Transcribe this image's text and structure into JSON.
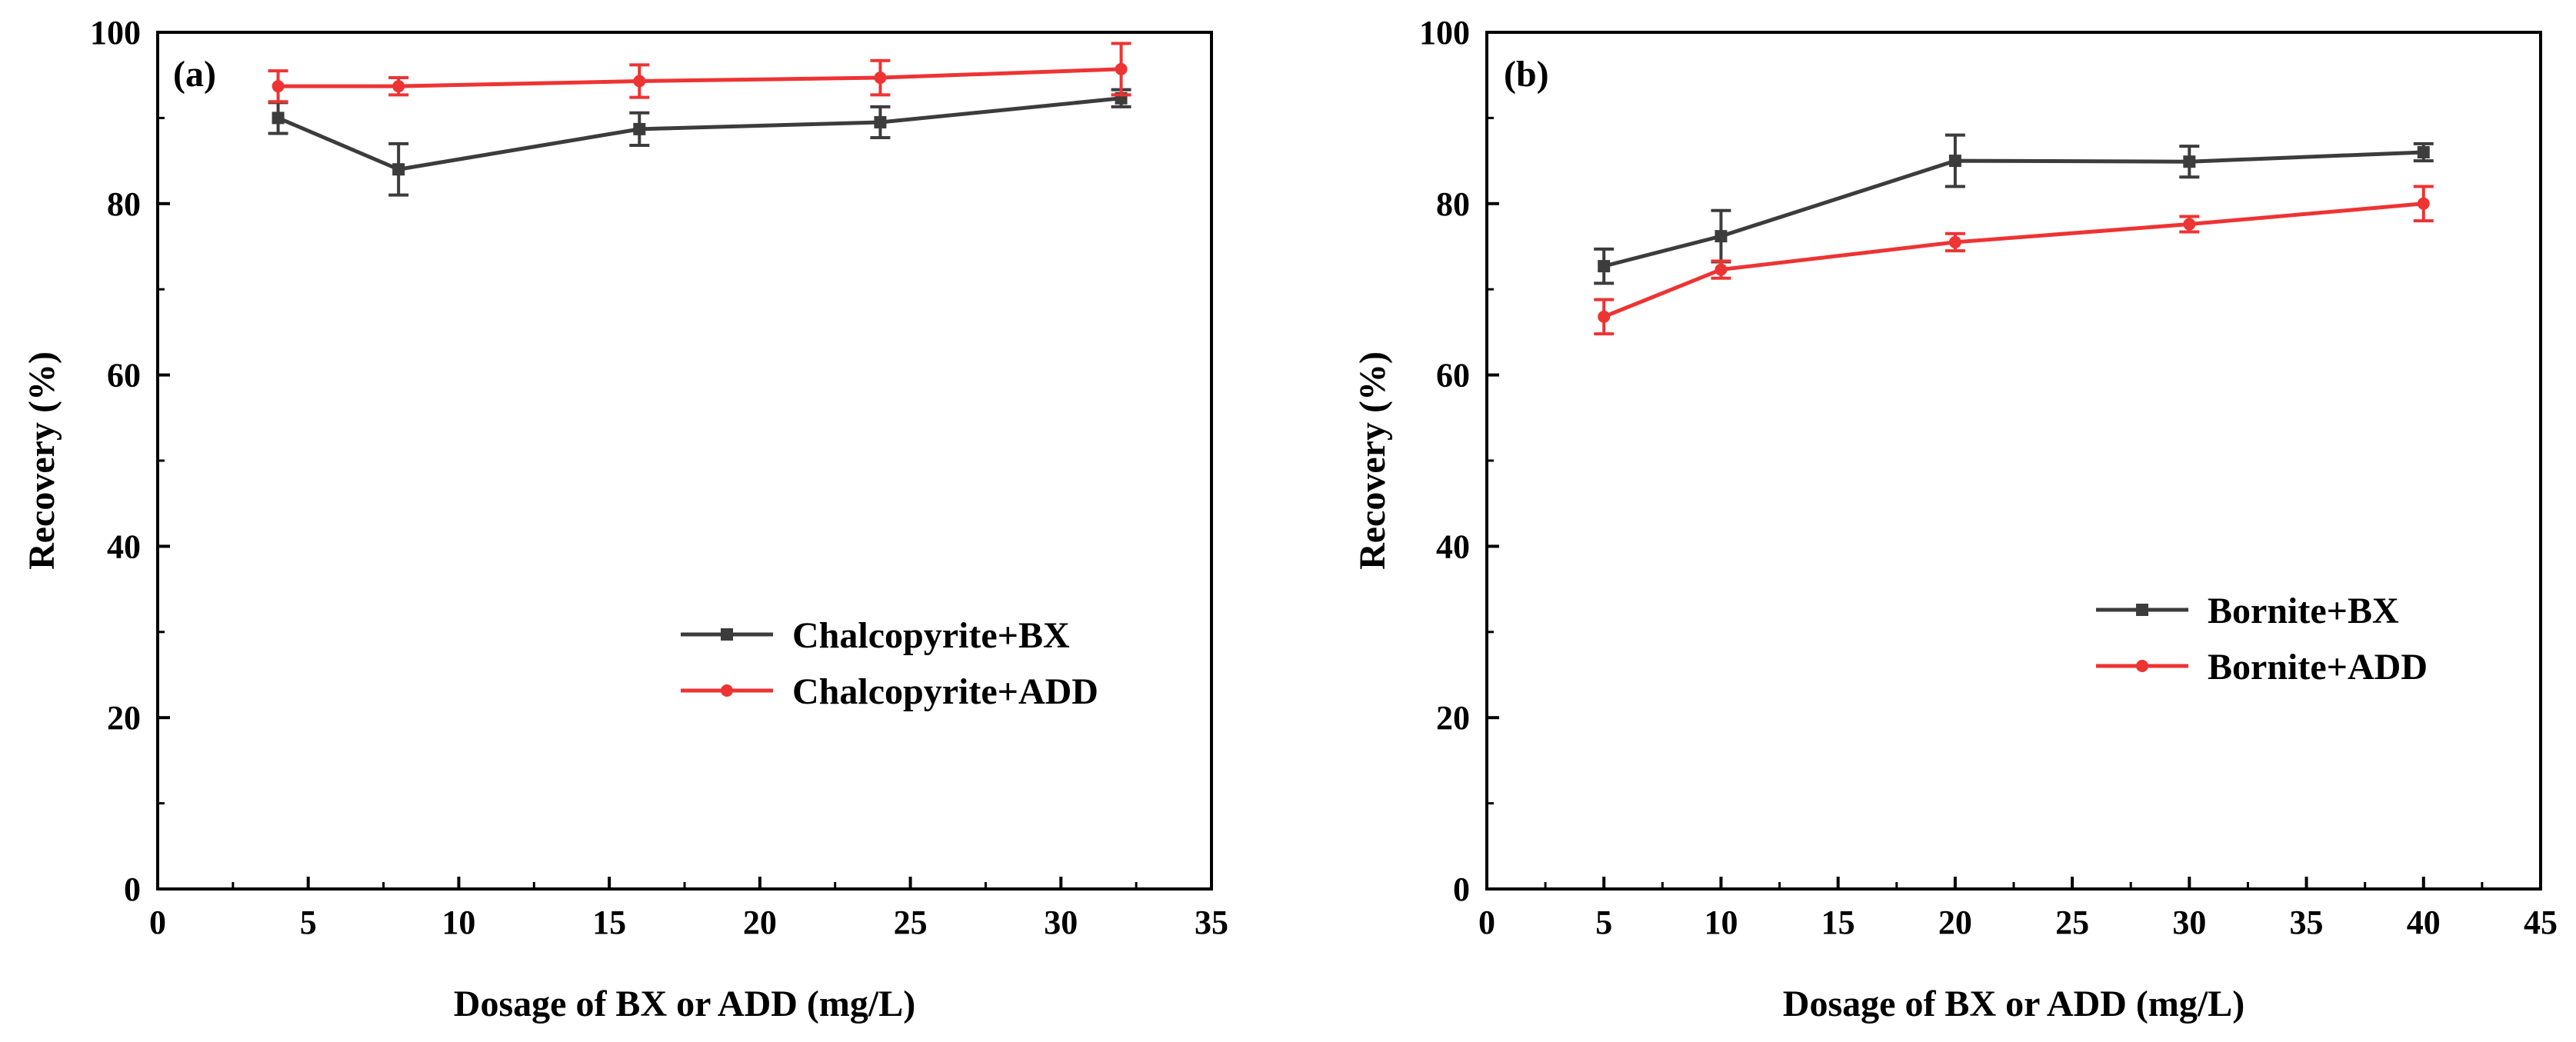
{
  "chart_data": [
    {
      "type": "line",
      "panel_label": "(a)",
      "xlabel": "Dosage of BX or ADD (mg/L)",
      "ylabel": "Recovery (%)",
      "xlim": [
        0,
        35
      ],
      "ylim": [
        0,
        100
      ],
      "xticks": [
        0,
        5,
        10,
        15,
        20,
        25,
        30,
        35
      ],
      "yticks": [
        0,
        20,
        40,
        60,
        80,
        100
      ],
      "legend_position": "center-right",
      "series": [
        {
          "name": "Chalcopyrite+BX",
          "color": "#3c3c3c",
          "marker": "square",
          "x": [
            4,
            8,
            16,
            24,
            32
          ],
          "y": [
            90.0,
            84.0,
            88.7,
            89.5,
            92.3
          ],
          "err": [
            1.8,
            3.0,
            1.9,
            1.8,
            1.0
          ]
        },
        {
          "name": "Chalcopyrite+ADD",
          "color": "#ee3333",
          "marker": "circle",
          "x": [
            4,
            8,
            16,
            24,
            32
          ],
          "y": [
            93.7,
            93.7,
            94.3,
            94.7,
            95.7
          ],
          "err": [
            1.8,
            1.0,
            1.9,
            2.0,
            3.0
          ]
        }
      ]
    },
    {
      "type": "line",
      "panel_label": "(b)",
      "xlabel": "Dosage of BX or ADD (mg/L)",
      "ylabel": "Recovery (%)",
      "xlim": [
        0,
        45
      ],
      "ylim": [
        0,
        100
      ],
      "xticks": [
        0,
        5,
        10,
        15,
        20,
        25,
        30,
        35,
        40,
        45
      ],
      "yticks": [
        0,
        20,
        40,
        60,
        80,
        100
      ],
      "legend_position": "center-right",
      "series": [
        {
          "name": "Bornite+BX",
          "color": "#3c3c3c",
          "marker": "square",
          "x": [
            5,
            10,
            20,
            30,
            40
          ],
          "y": [
            72.7,
            76.2,
            85.0,
            84.9,
            86.0
          ],
          "err": [
            2.0,
            3.0,
            3.0,
            1.8,
            1.0
          ]
        },
        {
          "name": "Bornite+ADD",
          "color": "#ee3333",
          "marker": "circle",
          "x": [
            5,
            10,
            20,
            30,
            40
          ],
          "y": [
            66.8,
            72.3,
            75.5,
            77.6,
            80.0
          ],
          "err": [
            2.0,
            1.0,
            1.0,
            0.9,
            2.0
          ]
        }
      ]
    }
  ]
}
